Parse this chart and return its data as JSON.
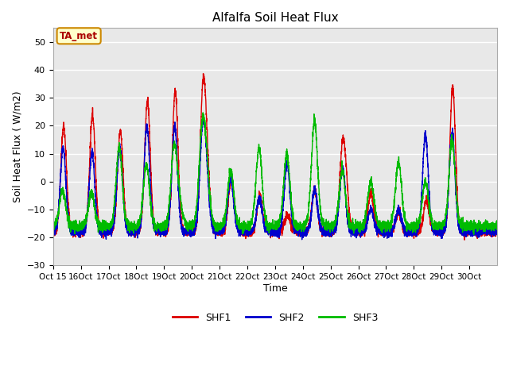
{
  "title": "Alfalfa Soil Heat Flux",
  "ylabel": "Soil Heat Flux ( W/m2)",
  "xlabel": "Time",
  "annotation_text": "TA_met",
  "legend_labels": [
    "SHF1",
    "SHF2",
    "SHF3"
  ],
  "colors": [
    "#dd0000",
    "#0000cc",
    "#00bb00"
  ],
  "ylim": [
    -30,
    55
  ],
  "yticks": [
    -30,
    -20,
    -10,
    0,
    10,
    20,
    30,
    40,
    50
  ],
  "background_color": "#e8e8e8",
  "n_days": 16,
  "start_day": 15,
  "points_per_day": 288,
  "grid_color": "#ffffff",
  "spine_color": "#aaaaaa"
}
